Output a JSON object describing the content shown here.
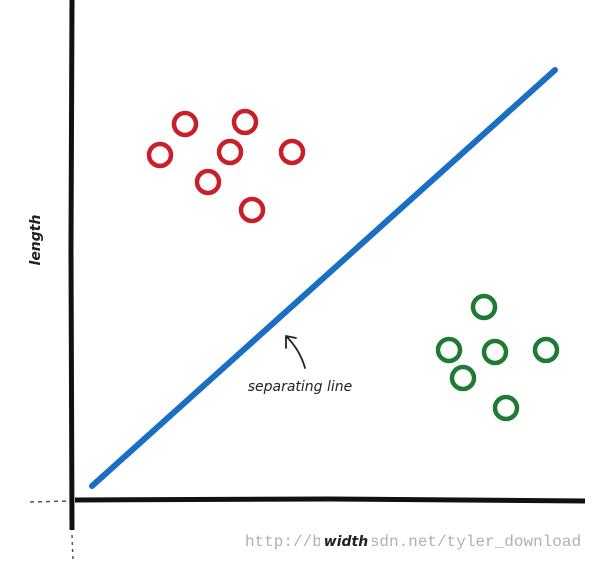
{
  "axes": {
    "y_label": "length",
    "x_label": "width"
  },
  "annotation": "separating line",
  "watermark": "http://blog.csdn.net/tyler_download"
}
